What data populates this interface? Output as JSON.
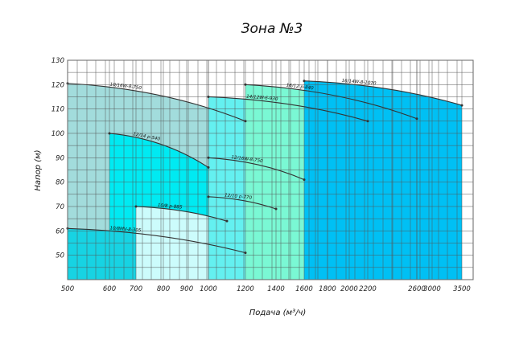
{
  "chart_data": {
    "type": "area",
    "title": "Зона №3",
    "xlabel": "Подача (м³/ч)",
    "ylabel": "Напор (м)",
    "x_ticks": [
      500,
      600,
      700,
      800,
      900,
      1000,
      1200,
      1400,
      1600,
      1800,
      2000,
      2200,
      2600,
      3000,
      3500
    ],
    "y_ticks": [
      50,
      60,
      70,
      80,
      90,
      100,
      110,
      120,
      130
    ],
    "ylim": [
      40,
      130
    ],
    "grid": true,
    "legend": "none",
    "series": [
      {
        "name": "10/16W-8-750",
        "color": "#a2dcdc",
        "x": [
          500,
          1200
        ],
        "y": [
          120.5,
          105
        ]
      },
      {
        "name": "12/14 p-540",
        "color": "#00eaf2",
        "x": [
          600,
          1000
        ],
        "y": [
          100,
          86
        ]
      },
      {
        "name": "10/8MV-8-305",
        "color": "#17d3e3",
        "x": [
          500,
          1200
        ],
        "y": [
          61,
          51
        ]
      },
      {
        "name": "10/8 p-885",
        "color": "#ccfcfc",
        "x": [
          700,
          1100
        ],
        "y": [
          70,
          64
        ]
      },
      {
        "name": "12/10 p-770",
        "color": "#a2c6fa",
        "x": [
          1000,
          1400
        ],
        "y": [
          74,
          69
        ]
      },
      {
        "name": "12/16W-8-750",
        "color": "#2cc4c4",
        "x": [
          1000,
          1600
        ],
        "y": [
          90,
          81
        ]
      },
      {
        "name": "14/12W-6-930",
        "color": "#64f0f0",
        "x": [
          1000,
          2200
        ],
        "y": [
          115,
          105
        ]
      },
      {
        "name": "16/12 p-840",
        "color": "#7af8d4",
        "x": [
          1200,
          2600
        ],
        "y": [
          120,
          106
        ]
      },
      {
        "name": "16/14W-8-1070",
        "color": "#00c0f4",
        "x": [
          1600,
          3500
        ],
        "y": [
          121.5,
          111.5
        ]
      }
    ]
  }
}
